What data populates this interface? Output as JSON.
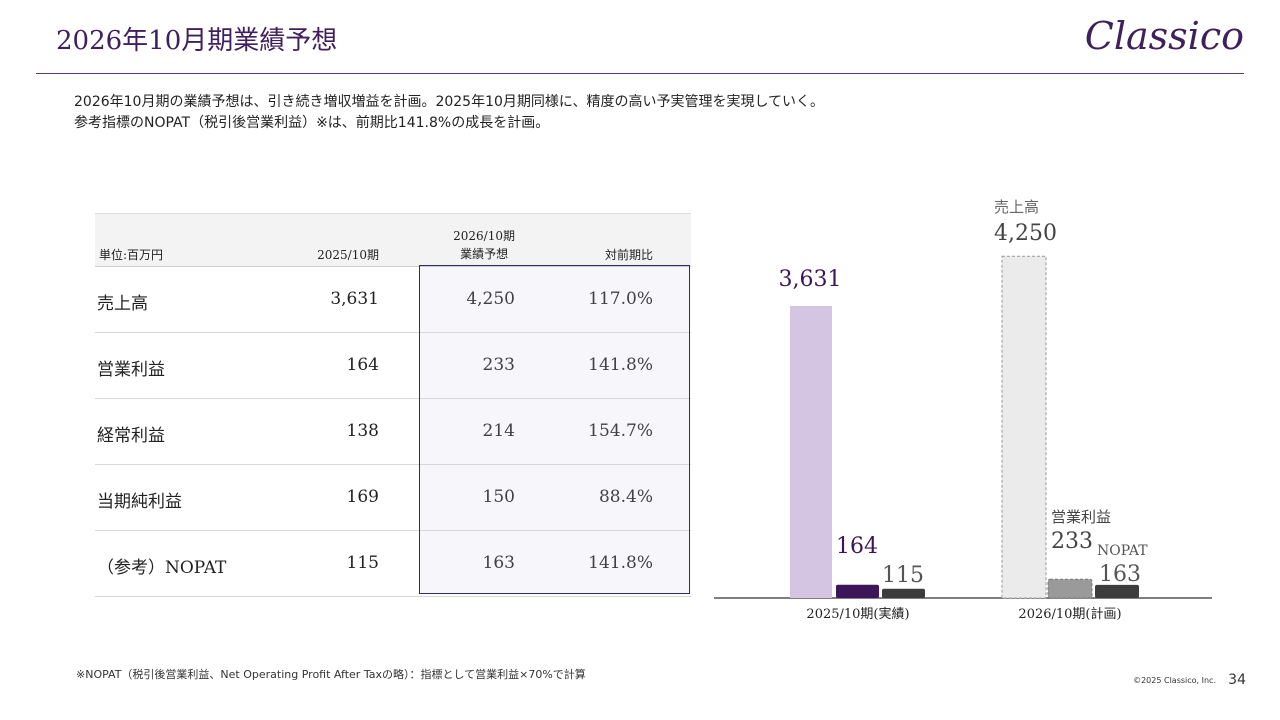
{
  "header": {
    "title": "2026年10月期業績予想",
    "logo": "Classico"
  },
  "description": {
    "line1": "2026年10月期の業績予想は、引き続き増収増益を計画。2025年10月期同様に、精度の高い予実管理を実現していく。",
    "line2": "参考指標のNOPAT（税引後営業利益）※は、前期比141.8%の成長を計画。"
  },
  "table": {
    "unit_label": "単位:百万円",
    "col1": "2025/10期",
    "col2_line1": "2026/10期",
    "col2_line2": "業績予想",
    "col3": "対前期比",
    "rows": [
      {
        "label": "売上高",
        "v1": "3,631",
        "v2": "4,250",
        "v3": "117.0%"
      },
      {
        "label": "営業利益",
        "v1": "164",
        "v2": "233",
        "v3": "141.8%"
      },
      {
        "label": "経常利益",
        "v1": "138",
        "v2": "214",
        "v3": "154.7%"
      },
      {
        "label": "当期純利益",
        "v1": "169",
        "v2": "150",
        "v3": "88.4%"
      },
      {
        "label": "（参考）NOPAT",
        "v1": "115",
        "v2": "163",
        "v3": "141.8%"
      }
    ]
  },
  "chart_data": {
    "type": "bar",
    "categories": [
      "2025/10期(実績)",
      "2026/10期(計画)"
    ],
    "series": [
      {
        "name": "売上高",
        "values": [
          3631,
          4250
        ],
        "colors": [
          "#d4c6e2",
          "#ebebeb"
        ],
        "labels": [
          "3,631",
          "4,250"
        ]
      },
      {
        "name": "営業利益",
        "values": [
          164,
          233
        ],
        "colors": [
          "#3d1559",
          "#9a9a9a"
        ],
        "labels": [
          "164",
          "233"
        ]
      },
      {
        "name": "NOPAT",
        "values": [
          115,
          163
        ],
        "colors": [
          "#3c3c3c",
          "#3c3c3c"
        ],
        "labels": [
          "115",
          "163"
        ]
      }
    ],
    "annotations": {
      "sales": "売上高",
      "op": "営業利益",
      "nopat": "NOPAT"
    },
    "ylim": [
      0,
      4700
    ]
  },
  "footer": {
    "footnote": "※NOPAT（税引後営業利益、Net Operating Profit After Taxの略）：指標として営業利益×70%で計算",
    "copyright": "©2025 Classico, Inc.",
    "page": "34"
  }
}
